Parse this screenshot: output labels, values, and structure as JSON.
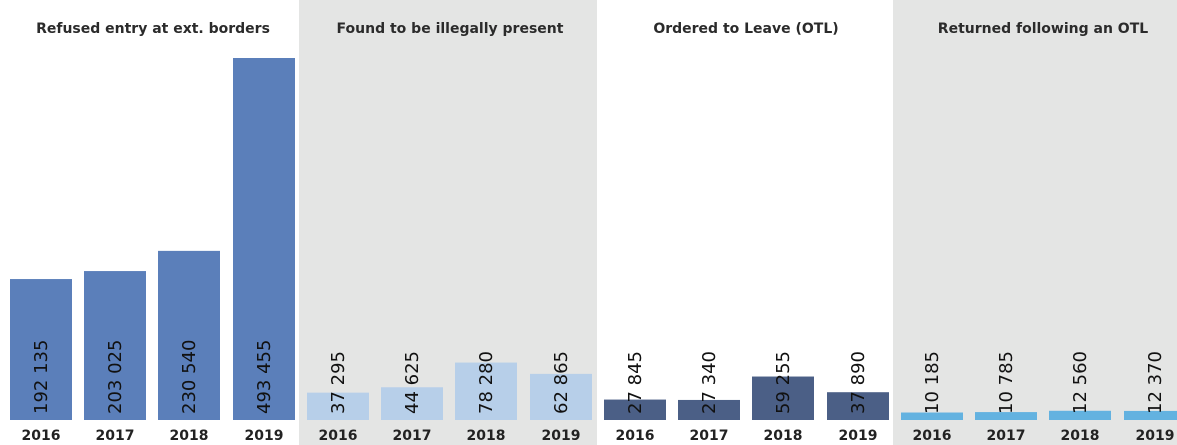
{
  "chart_data": {
    "type": "bar",
    "categories": [
      "2016",
      "2017",
      "2018",
      "2019"
    ],
    "panels": [
      {
        "title": "Refused entry at ext. borders",
        "color": "#5b7fba",
        "shaded": false,
        "values": [
          192135,
          203025,
          230540,
          493455
        ],
        "labels": [
          "192 135",
          "203 025",
          "230 540",
          "493 455"
        ]
      },
      {
        "title": "Found to be illegally present",
        "color": "#b7cfe9",
        "shaded": true,
        "values": [
          37295,
          44625,
          78280,
          62865
        ],
        "labels": [
          "37 295",
          "44 625",
          "78 280",
          "62 865"
        ]
      },
      {
        "title": "Ordered to Leave (OTL)",
        "color": "#4b5f86",
        "shaded": false,
        "values": [
          27845,
          27340,
          59255,
          37890
        ],
        "labels": [
          "27 845",
          "27 340",
          "59 255",
          "37 890"
        ]
      },
      {
        "title": "Returned following an OTL",
        "color": "#63b2e0",
        "shaded": true,
        "values": [
          10185,
          10785,
          12560,
          12370
        ],
        "labels": [
          "10 185",
          "10 785",
          "12 560",
          "12 370"
        ]
      }
    ],
    "ylim": [
      0,
      500000
    ],
    "grid": false,
    "legend": "none",
    "shade_color": "#e4e5e4"
  }
}
